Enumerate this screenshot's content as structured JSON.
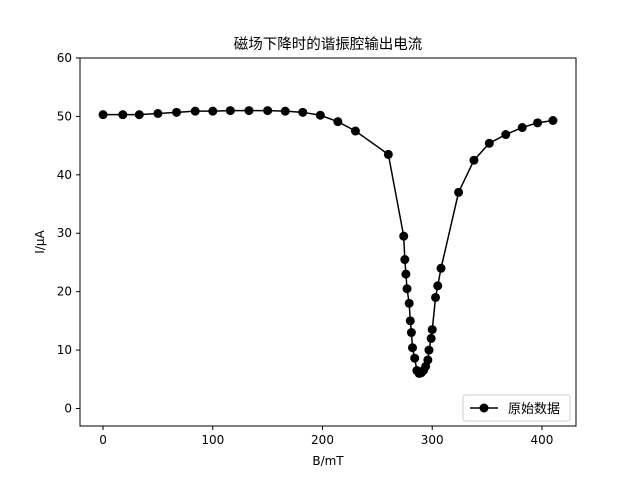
{
  "chart_data": {
    "type": "line",
    "title": "磁场下降时的谐振腔输出电流",
    "xlabel": "B/mT",
    "ylabel": "I/μA",
    "xlim": [
      -21,
      431
    ],
    "ylim": [
      -3,
      60
    ],
    "xticks": [
      0,
      100,
      200,
      300,
      400
    ],
    "yticks": [
      0,
      10,
      20,
      30,
      40,
      50,
      60
    ],
    "grid": false,
    "legend_position": "lower-right",
    "line_color": "#000000",
    "marker": "circle",
    "series": [
      {
        "name": "原始数据",
        "x": [
          0,
          18,
          33,
          50,
          67,
          84,
          100,
          116,
          133,
          150,
          166,
          182,
          198,
          214,
          230,
          260,
          274,
          275,
          276,
          277,
          279,
          280,
          281,
          282,
          284,
          286,
          288,
          290,
          292,
          294,
          296,
          297,
          299,
          300,
          303,
          305,
          308,
          324,
          338,
          352,
          367,
          382,
          396,
          410
        ],
        "y": [
          50.3,
          50.3,
          50.3,
          50.5,
          50.7,
          50.9,
          50.9,
          51.0,
          51.0,
          51.0,
          50.9,
          50.7,
          50.2,
          49.1,
          47.5,
          43.5,
          29.5,
          25.5,
          23.0,
          20.5,
          18.0,
          15.0,
          13.0,
          10.4,
          8.6,
          6.5,
          6.0,
          6.1,
          6.5,
          7.2,
          8.3,
          10.0,
          12.0,
          13.5,
          19.0,
          21.0,
          24.0,
          37.0,
          42.5,
          45.4,
          46.9,
          48.1,
          48.9,
          49.3
        ]
      }
    ]
  }
}
